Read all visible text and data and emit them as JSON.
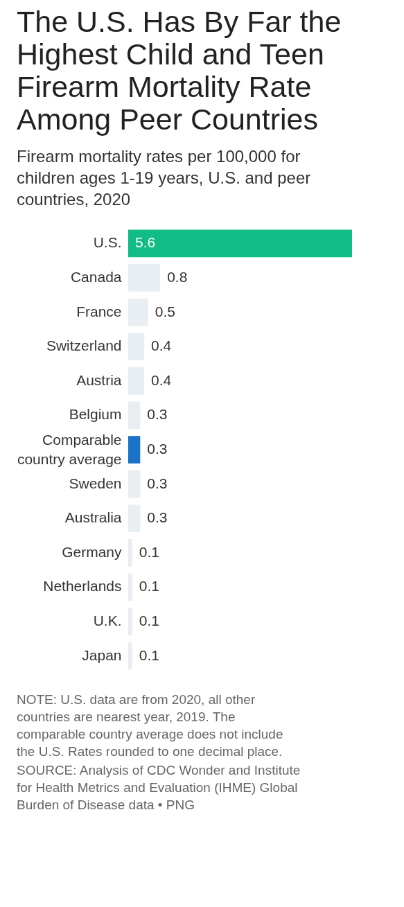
{
  "chart_data": {
    "type": "bar",
    "orientation": "horizontal",
    "title": "The U.S. Has By Far the Highest Child and Teen Firearm Mortality Rate Among Peer Countries",
    "subtitle": "Firearm mortality rates per 100,000 for children ages 1-19 years, U.S. and peer countries, 2020",
    "categories": [
      "U.S.",
      "Canada",
      "France",
      "Switzerland",
      "Austria",
      "Belgium",
      "Comparable country average",
      "Sweden",
      "Australia",
      "Germany",
      "Netherlands",
      "U.K.",
      "Japan"
    ],
    "values": [
      5.6,
      0.8,
      0.5,
      0.4,
      0.4,
      0.3,
      0.3,
      0.3,
      0.3,
      0.1,
      0.1,
      0.1,
      0.1
    ],
    "colors": [
      "#12bc85",
      "#e8eef2",
      "#e8eef2",
      "#e8eef2",
      "#e8eef2",
      "#e8eef2",
      "#1a73c8",
      "#e8eef2",
      "#e8eef2",
      "#e8eef2",
      "#e8eef2",
      "#e8eef2",
      "#e8eef2"
    ],
    "data_labels": true,
    "annotations": [
      "NOTE: U.S. data are from 2020, all other countries are nearest year, 2019. The comparable country average does not include the U.S. Rates rounded to one decimal place.",
      "SOURCE: Analysis of CDC Wonder and Institute for Health Metrics and Evaluation (IHME) Global Burden of Disease data • PNG"
    ]
  }
}
